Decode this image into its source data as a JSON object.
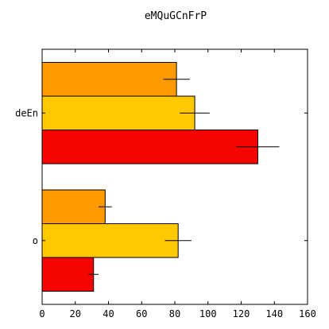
{
  "chart_data": {
    "type": "bar",
    "orientation": "horizontal",
    "title": "eMQuGCnFrP",
    "xlabel": "",
    "ylabel": "",
    "categories": [
      "deEn",
      "o"
    ],
    "series": [
      {
        "color": "#ff9900",
        "values": [
          81,
          38
        ],
        "errors": [
          8,
          4
        ]
      },
      {
        "color": "#ffc800",
        "values": [
          92,
          82
        ],
        "errors": [
          9,
          8
        ]
      },
      {
        "color": "#f50500",
        "values": [
          130,
          31
        ],
        "errors": [
          13,
          3
        ]
      }
    ],
    "xlim": [
      0,
      160
    ],
    "xticks": [
      0,
      20,
      40,
      60,
      80,
      100,
      120,
      140,
      160
    ],
    "grid": false,
    "legend": "none"
  }
}
